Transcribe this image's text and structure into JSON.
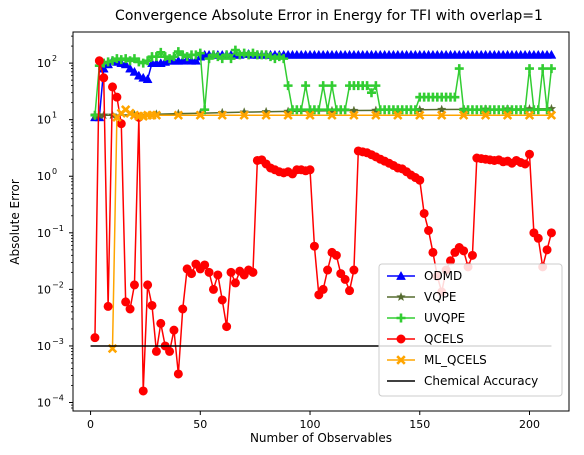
{
  "chart_data": {
    "type": "line",
    "title": "Convergence Absolute Error in Energy for TFI with overlap=1",
    "xlabel": "Number of Observables",
    "ylabel": "Absolute Error",
    "xlim": [
      -8,
      218
    ],
    "ylim_exp": [
      -4.15,
      2.55
    ],
    "yscale": "log",
    "grid": false,
    "legend_position": "lower-right",
    "x_ticks": [
      0,
      50,
      100,
      150,
      200
    ],
    "x_tick_labels": [
      "0",
      "50",
      "100",
      "150",
      "200"
    ],
    "y_ticks_exp": [
      -4,
      -3,
      -2,
      -1,
      0,
      1,
      2
    ],
    "y_tick_labels": [
      "10",
      "10",
      "10",
      "10",
      "10",
      "10",
      "10"
    ],
    "y_tick_sups": [
      "−4",
      "−3",
      "−2",
      "−1",
      "0",
      "1",
      "2"
    ],
    "series": [
      {
        "name": "ODMD",
        "color": "#0000ff",
        "marker": "triangle",
        "x": [
          2,
          4,
          6,
          8,
          10,
          12,
          14,
          16,
          18,
          20,
          22,
          24,
          26,
          28,
          30,
          32,
          34,
          36,
          38,
          40,
          42,
          44,
          46,
          48,
          50,
          52,
          54,
          56,
          58,
          60,
          62,
          64,
          66,
          68,
          70,
          72,
          74,
          76,
          78,
          80,
          82,
          84,
          86,
          88,
          90,
          92,
          94,
          96,
          98,
          100,
          102,
          104,
          106,
          108,
          110,
          112,
          114,
          116,
          118,
          120,
          122,
          124,
          126,
          128,
          130,
          132,
          134,
          136,
          138,
          140,
          142,
          144,
          146,
          148,
          150,
          152,
          154,
          156,
          158,
          160,
          162,
          164,
          166,
          168,
          170,
          172,
          174,
          176,
          178,
          180,
          182,
          184,
          186,
          188,
          190,
          192,
          194,
          196,
          198,
          200,
          202,
          204,
          206,
          208,
          210
        ],
        "y": [
          11,
          11,
          80,
          95,
          110,
          105,
          100,
          95,
          80,
          70,
          60,
          55,
          52,
          100,
          100,
          100,
          105,
          110,
          110,
          110,
          110,
          115,
          110,
          110,
          130,
          140,
          140,
          140,
          140,
          140,
          140,
          140,
          140,
          140,
          145,
          145,
          140,
          140,
          140,
          140,
          140,
          140,
          140,
          140,
          140,
          140,
          140,
          140,
          140,
          140,
          140,
          140,
          140,
          140,
          140,
          140,
          140,
          140,
          140,
          140,
          140,
          140,
          140,
          140,
          140,
          140,
          140,
          140,
          140,
          140,
          140,
          140,
          140,
          140,
          140,
          140,
          140,
          140,
          140,
          140,
          140,
          140,
          140,
          140,
          140,
          140,
          140,
          140,
          140,
          140,
          140,
          140,
          140,
          140,
          140,
          140,
          140,
          140,
          140,
          140,
          140,
          140,
          140,
          140,
          140
        ]
      },
      {
        "name": "VQPE",
        "color": "#556b2f",
        "marker": "star",
        "x": [
          2,
          4,
          6,
          10,
          20,
          30,
          40,
          50,
          60,
          70,
          80,
          90,
          100,
          110,
          120,
          130,
          140,
          150,
          160,
          170,
          180,
          190,
          200,
          210
        ],
        "y": [
          12,
          12,
          12,
          12,
          12.2,
          12.5,
          12.8,
          13,
          13.3,
          13.6,
          13.8,
          14,
          14.2,
          14.4,
          14.5,
          14.6,
          14.8,
          15,
          15.1,
          15.2,
          15.3,
          15.4,
          15.5,
          15.6
        ]
      },
      {
        "name": "UVQPE",
        "color": "#32cd32",
        "marker": "plus",
        "x": [
          2,
          4,
          6,
          8,
          10,
          12,
          14,
          16,
          18,
          20,
          22,
          24,
          26,
          28,
          30,
          32,
          34,
          36,
          38,
          40,
          42,
          44,
          46,
          48,
          50,
          52,
          54,
          56,
          58,
          60,
          62,
          64,
          66,
          68,
          70,
          72,
          74,
          76,
          78,
          80,
          82,
          84,
          86,
          88,
          90,
          92,
          94,
          96,
          98,
          100,
          102,
          104,
          106,
          108,
          110,
          112,
          114,
          116,
          118,
          120,
          122,
          124,
          126,
          128,
          130,
          132,
          134,
          136,
          138,
          140,
          142,
          144,
          146,
          148,
          150,
          152,
          154,
          156,
          158,
          160,
          162,
          164,
          166,
          168,
          170,
          172,
          174,
          176,
          178,
          180,
          182,
          184,
          186,
          188,
          190,
          192,
          194,
          196,
          198,
          200,
          202,
          204,
          206,
          208,
          210
        ],
        "y": [
          12,
          90,
          100,
          105,
          110,
          120,
          115,
          120,
          110,
          120,
          105,
          100,
          110,
          130,
          130,
          155,
          130,
          120,
          130,
          160,
          140,
          130,
          140,
          140,
          150,
          15,
          120,
          140,
          130,
          120,
          140,
          120,
          170,
          140,
          150,
          140,
          150,
          140,
          140,
          140,
          130,
          120,
          130,
          120,
          40,
          15,
          15,
          15,
          40,
          15,
          15,
          15,
          40,
          15,
          40,
          15,
          15,
          15,
          40,
          40,
          40,
          40,
          40,
          30,
          40,
          15,
          15,
          15,
          15,
          15,
          15,
          15,
          15,
          15,
          25,
          25,
          25,
          25,
          25,
          25,
          25,
          25,
          25,
          80,
          15,
          15,
          15,
          15,
          15,
          15,
          15,
          15,
          15,
          15,
          15,
          15,
          15,
          15,
          15,
          80,
          15,
          15,
          80,
          15,
          80
        ]
      },
      {
        "name": "QCELS",
        "color": "#ff0000",
        "marker": "circle",
        "x": [
          2,
          4,
          6,
          8,
          10,
          12,
          14,
          16,
          18,
          20,
          22,
          24,
          26,
          28,
          30,
          32,
          34,
          36,
          38,
          40,
          42,
          44,
          46,
          48,
          50,
          52,
          54,
          56,
          58,
          60,
          62,
          64,
          66,
          68,
          70,
          72,
          74,
          76,
          78,
          80,
          82,
          84,
          86,
          88,
          90,
          92,
          94,
          96,
          98,
          100,
          102,
          104,
          106,
          108,
          110,
          112,
          114,
          116,
          118,
          120,
          122,
          124,
          126,
          128,
          130,
          132,
          134,
          136,
          138,
          140,
          142,
          144,
          146,
          148,
          150,
          152,
          154,
          156,
          158,
          160,
          162,
          164,
          166,
          168,
          170,
          172,
          174,
          176,
          178,
          180,
          182,
          184,
          186,
          188,
          190,
          192,
          194,
          196,
          198,
          200,
          202,
          204,
          206,
          208,
          210
        ],
        "y": [
          0.0014,
          110,
          55,
          0.005,
          38,
          25,
          8.5,
          0.006,
          0.0045,
          0.012,
          11,
          0.00016,
          0.012,
          0.0052,
          0.0008,
          0.0025,
          0.001,
          0.0008,
          0.0019,
          0.00032,
          0.0045,
          0.023,
          0.019,
          0.028,
          0.023,
          0.027,
          0.02,
          0.01,
          0.018,
          0.0065,
          0.0022,
          0.02,
          0.013,
          0.021,
          0.018,
          0.022,
          0.02,
          1.9,
          1.95,
          1.65,
          1.4,
          1.3,
          1.2,
          1.15,
          1.2,
          1.1,
          1.3,
          1.3,
          1.25,
          1.3,
          0.058,
          0.008,
          0.01,
          0.022,
          0.045,
          0.04,
          0.019,
          0.015,
          0.0095,
          0.022,
          2.8,
          2.7,
          2.6,
          2.4,
          2.2,
          2.0,
          1.85,
          1.7,
          1.55,
          1.4,
          1.35,
          1.2,
          1.05,
          0.95,
          0.85,
          0.22,
          0.11,
          0.045,
          0.017,
          0.009,
          0.022,
          0.032,
          0.045,
          0.055,
          0.048,
          0.025,
          0.04,
          2.1,
          2.05,
          2.0,
          1.95,
          1.9,
          1.95,
          1.8,
          1.85,
          1.7,
          1.9,
          1.75,
          1.65,
          2.45,
          0.1,
          0.08,
          0.025,
          0.05,
          0.1
        ]
      },
      {
        "name": "ML_QCELS",
        "color": "#ffa500",
        "marker": "x",
        "x": [
          10,
          12,
          14,
          16,
          18,
          20,
          22,
          24,
          26,
          28,
          30,
          40,
          50,
          60,
          70,
          80,
          90,
          100,
          110,
          120,
          130,
          140,
          150,
          160,
          170,
          180,
          190,
          200,
          210
        ],
        "y": [
          0.0009,
          11,
          13,
          15,
          13,
          12,
          11.5,
          11.5,
          12,
          12,
          12,
          12,
          12,
          12,
          12,
          12,
          12,
          12,
          12,
          12,
          12,
          12,
          12,
          12,
          12,
          12,
          12,
          12,
          12
        ]
      },
      {
        "name": "Chemical Accuracy",
        "color": "#000000",
        "marker": "none",
        "x": [
          0,
          210
        ],
        "y": [
          0.001,
          0.001
        ]
      }
    ]
  }
}
